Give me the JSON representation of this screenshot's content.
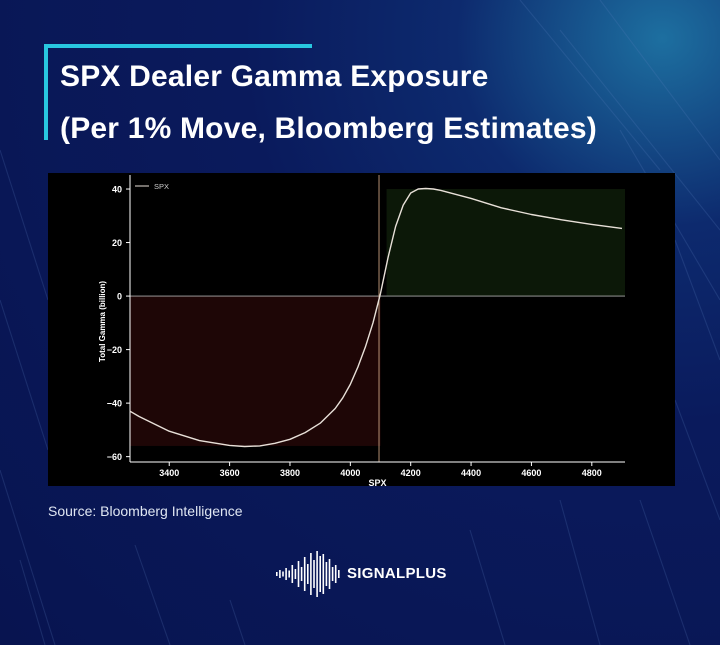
{
  "header": {
    "title_line1": "SPX Dealer Gamma Exposure",
    "title_line2": "(Per 1% Move, Bloomberg Estimates)",
    "accent_color": "#28c7e0"
  },
  "source": "Source: Bloomberg Intelligence",
  "brand": {
    "name": "SIGNALPLUS"
  },
  "colors": {
    "background": "#0a1a5c",
    "chart_background": "#000000",
    "line": "#e8e0d8",
    "negative_fill": "#1e0606",
    "positive_fill": "#0c1808",
    "zero_line": "#aaaaaa",
    "flip_line": "#c8a080"
  },
  "chart_data": {
    "type": "line",
    "title": "",
    "xlabel": "SPX",
    "ylabel": "Total Gamma (billion)",
    "xlim": [
      3270,
      4910
    ],
    "ylim": [
      -62,
      43
    ],
    "xticks": [
      3400,
      3600,
      3800,
      4000,
      4200,
      4400,
      4600,
      4800
    ],
    "yticks": [
      -60,
      -40,
      -20,
      0,
      20,
      40
    ],
    "legend": {
      "position": "top-left",
      "entries": [
        "SPX"
      ]
    },
    "flip_level": 4095,
    "shaded_regions": [
      {
        "x": [
          3270,
          4100
        ],
        "y": [
          -56,
          0
        ],
        "sign": "negative"
      },
      {
        "x": [
          4120,
          4910
        ],
        "y": [
          0,
          40
        ],
        "sign": "positive"
      }
    ],
    "series": [
      {
        "name": "SPX",
        "x": [
          3270,
          3300,
          3400,
          3500,
          3600,
          3650,
          3700,
          3750,
          3800,
          3850,
          3900,
          3950,
          3975,
          4000,
          4025,
          4050,
          4075,
          4100,
          4125,
          4150,
          4175,
          4200,
          4225,
          4250,
          4275,
          4300,
          4350,
          4400,
          4500,
          4600,
          4700,
          4800,
          4900
        ],
        "y": [
          -43,
          -45,
          -50.5,
          -54,
          -55.8,
          -56.2,
          -56,
          -55,
          -53.5,
          -51,
          -47.5,
          -42,
          -38,
          -33,
          -26.5,
          -19,
          -10,
          1,
          14.5,
          26,
          34,
          38.5,
          40,
          40.2,
          40,
          39.5,
          38,
          36.5,
          33,
          30.5,
          28.5,
          26.8,
          25.3
        ]
      }
    ]
  }
}
